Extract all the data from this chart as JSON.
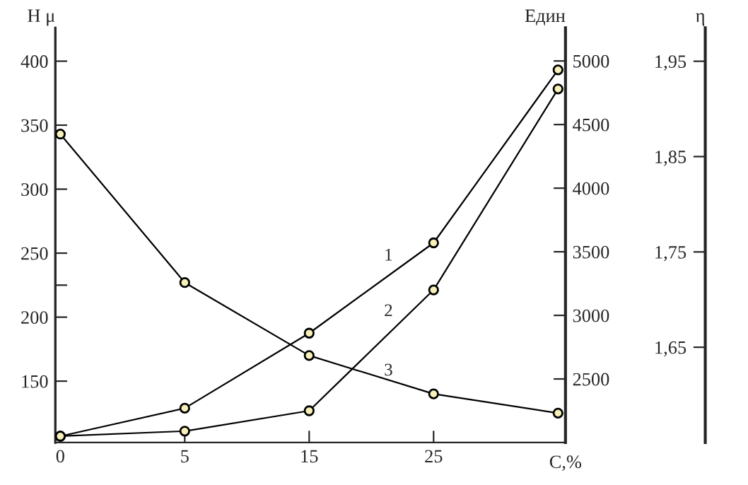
{
  "chart_data": {
    "type": "line",
    "categories": [
      "0",
      "5",
      "15",
      "25",
      null
    ],
    "xlabel": "C,%",
    "ylabel": "H μ",
    "y2label": "Един",
    "y3label": "η",
    "ylim": [
      102,
      426
    ],
    "yticks": [
      150,
      200,
      {
        "value": 225,
        "label": null
      },
      250,
      300,
      350,
      400
    ],
    "y2lim": [
      2000,
      5260
    ],
    "y2ticks": [
      2500,
      3000,
      3500,
      4000,
      4500,
      5000
    ],
    "y3lim": [
      1.55,
      1.985
    ],
    "y3ticks": [
      {
        "value": 1.65,
        "label": "1,65"
      },
      {
        "value": 1.75,
        "label": "1,75"
      },
      {
        "value": 1.85,
        "label": "1,85"
      },
      {
        "value": 1.95,
        "label": "1,95"
      }
    ],
    "marker": "circle",
    "line_style": "solid",
    "grid": false,
    "legend": false,
    "series": [
      {
        "name": "1",
        "color": "#000000",
        "axis": "y2",
        "values": [
          2050,
          2270,
          2860,
          3570,
          4930
        ]
      },
      {
        "name": "2",
        "color": "#000000",
        "axis": "y2",
        "values": [
          2050,
          2090,
          2250,
          3200,
          4780
        ]
      },
      {
        "name": "3",
        "color": "#000000",
        "values": [
          343,
          227,
          170,
          140,
          125
        ]
      }
    ]
  }
}
